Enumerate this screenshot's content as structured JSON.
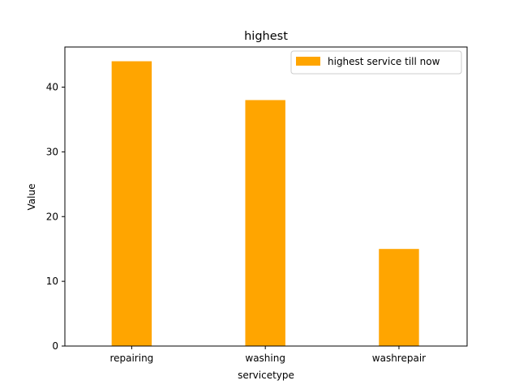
{
  "chart_data": {
    "type": "bar",
    "title": "highest",
    "xlabel": "servicetype",
    "ylabel": "Value",
    "categories": [
      "repairing",
      "washing",
      "washrepair"
    ],
    "series": [
      {
        "name": "highest service till now",
        "values": [
          44,
          38,
          15
        ],
        "color": "#ffa500"
      }
    ],
    "ylim": [
      0,
      46.2
    ],
    "yticks": [
      0,
      10,
      20,
      30,
      40
    ],
    "grid": false,
    "legend_position": "top-right"
  }
}
